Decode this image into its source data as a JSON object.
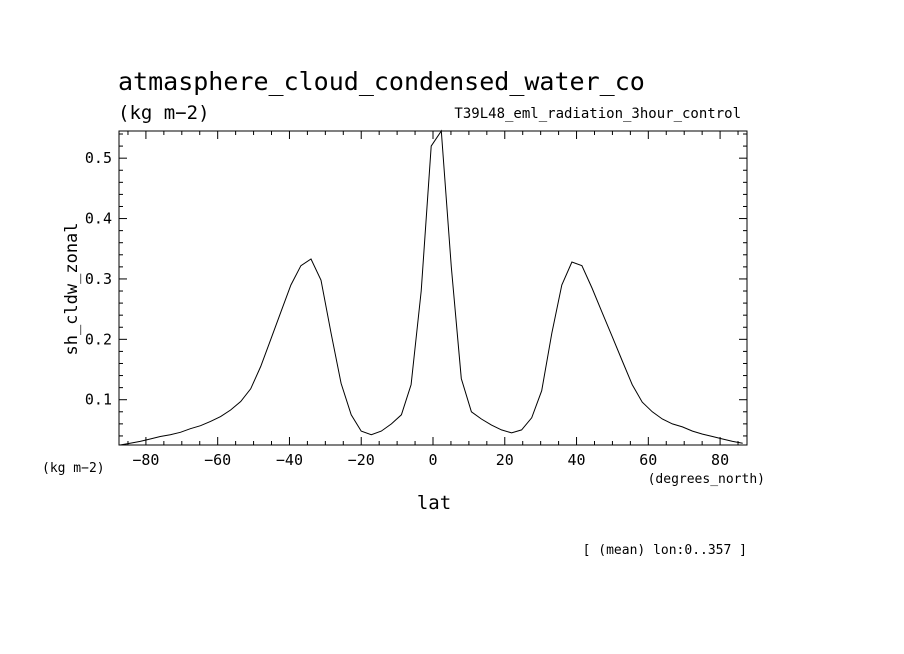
{
  "chart_data": {
    "type": "line",
    "title": "atmasphere_cloud_condensed_water_co",
    "units": "(kg m−2)",
    "subtitle": "T39L48_eml_radiation_3hour_control",
    "ylabel": "sh_cldw_zonal",
    "y_units": "(kg m−2)",
    "xlabel": "lat",
    "x_units": "(degrees_north)",
    "footnote": "[ (mean) lon:0..357 ]",
    "xlim": [
      -87.5,
      87.5
    ],
    "ylim": [
      0.025,
      0.545
    ],
    "x_ticks": [
      -80,
      -60,
      -40,
      -20,
      0,
      20,
      40,
      60,
      80
    ],
    "x_tick_labels": [
      "−80",
      "−60",
      "−40",
      "−20",
      "0",
      "20",
      "40",
      "60",
      "80"
    ],
    "y_ticks": [
      0.1,
      0.2,
      0.3,
      0.4,
      0.5
    ],
    "y_tick_labels": [
      "0.1",
      "0.2",
      "0.3",
      "0.4",
      "0.5"
    ],
    "grid": false,
    "series": [
      {
        "x": [
          -87.2,
          -84.4,
          -81.6,
          -78.8,
          -76.0,
          -73.2,
          -70.4,
          -67.6,
          -64.8,
          -62.0,
          -59.2,
          -56.4,
          -53.6,
          -50.8,
          -48.0,
          -45.2,
          -42.4,
          -39.6,
          -36.8,
          -34.0,
          -31.2,
          -28.4,
          -25.6,
          -22.8,
          -20.0,
          -17.2,
          -14.4,
          -11.6,
          -8.8,
          -6.1,
          -3.3,
          -0.5,
          2.3,
          5.1,
          7.9,
          10.7,
          13.5,
          16.3,
          19.1,
          21.9,
          24.7,
          27.5,
          30.3,
          33.1,
          35.9,
          38.7,
          41.5,
          44.3,
          47.1,
          49.9,
          52.7,
          55.5,
          58.3,
          61.1,
          63.9,
          66.7,
          69.5,
          72.3,
          75.1,
          77.9,
          80.7,
          83.5,
          86.3
        ],
        "y": [
          0.025,
          0.028,
          0.031,
          0.035,
          0.039,
          0.042,
          0.046,
          0.052,
          0.057,
          0.064,
          0.072,
          0.083,
          0.097,
          0.118,
          0.155,
          0.2,
          0.245,
          0.29,
          0.322,
          0.333,
          0.298,
          0.21,
          0.127,
          0.075,
          0.048,
          0.042,
          0.048,
          0.06,
          0.075,
          0.125,
          0.28,
          0.52,
          0.545,
          0.32,
          0.135,
          0.08,
          0.068,
          0.058,
          0.05,
          0.045,
          0.05,
          0.07,
          0.115,
          0.21,
          0.29,
          0.328,
          0.322,
          0.285,
          0.245,
          0.205,
          0.165,
          0.125,
          0.096,
          0.08,
          0.068,
          0.06,
          0.055,
          0.048,
          0.043,
          0.039,
          0.035,
          0.031,
          0.028
        ]
      }
    ]
  }
}
